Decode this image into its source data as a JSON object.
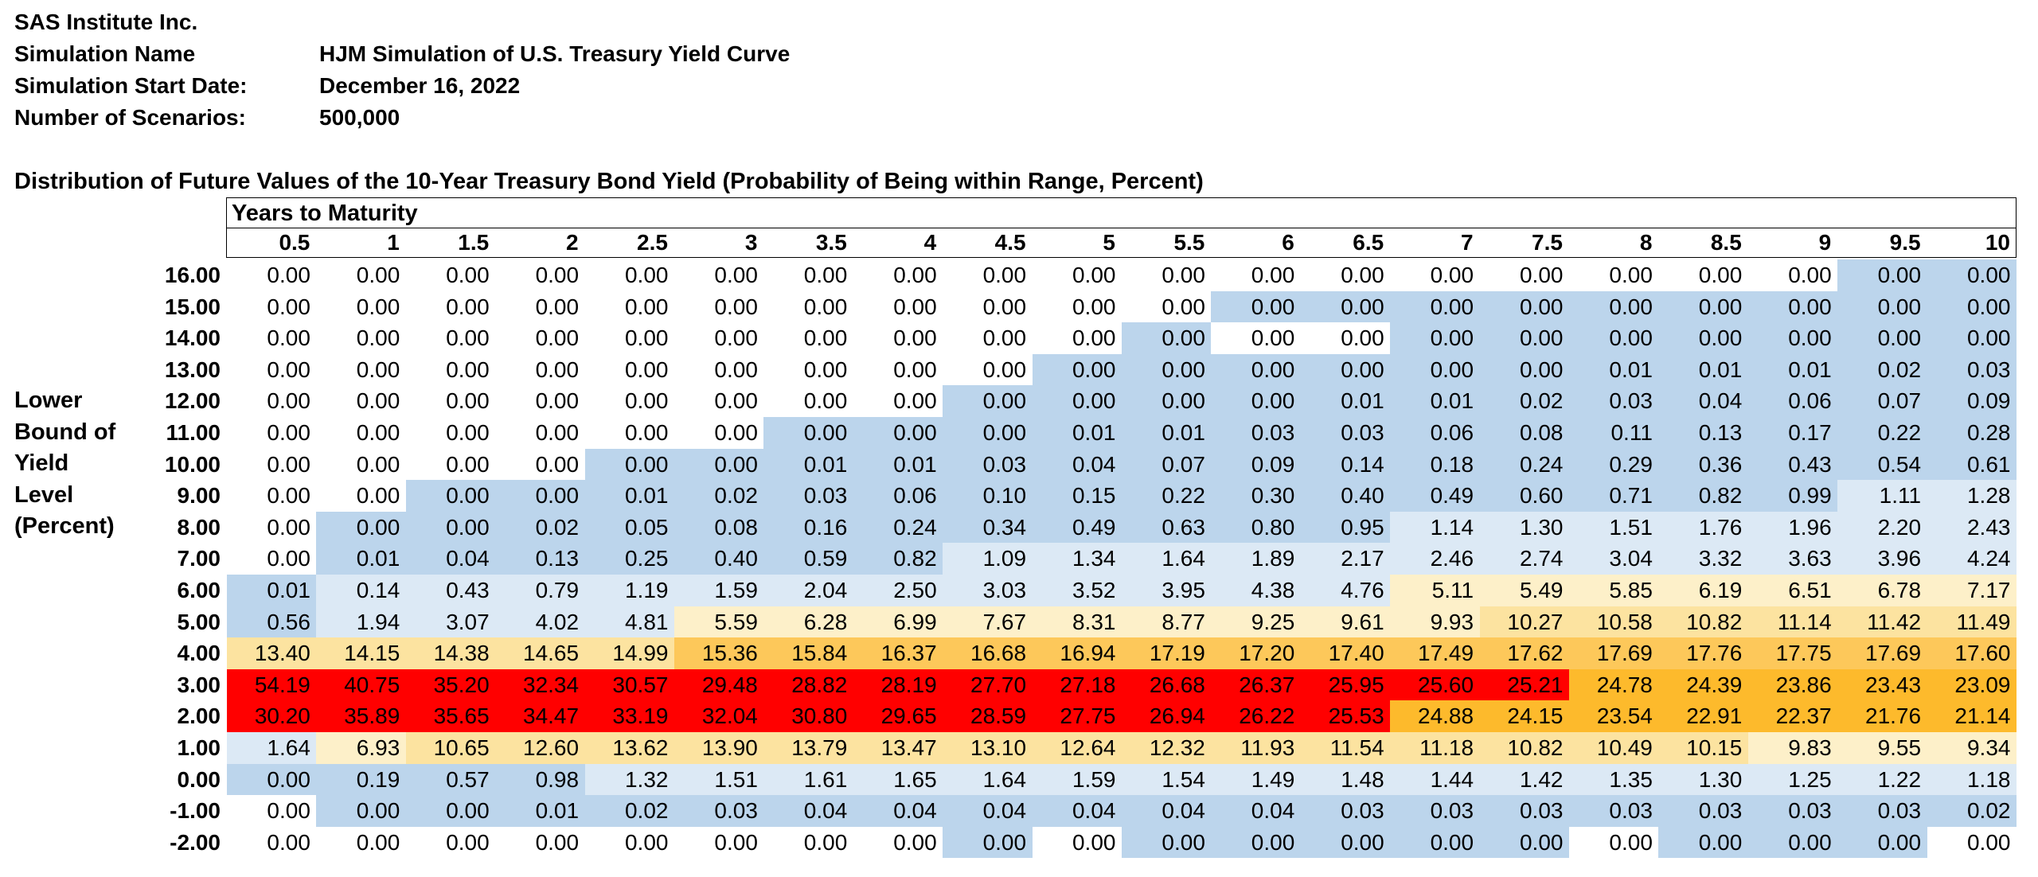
{
  "header": {
    "company": "SAS Institute Inc.",
    "sim_name_label": "Simulation Name",
    "sim_name": "HJM Simulation of U.S. Treasury Yield Curve",
    "start_date_label": "Simulation Start Date:",
    "start_date": "December 16, 2022",
    "scenarios_label": "Number of Scenarios:",
    "scenarios": "500,000"
  },
  "table_title": "Distribution of Future Values of the 10-Year Treasury Bond Yield (Probability of Being within Range, Percent)",
  "column_group_label": "Years to Maturity",
  "row_axis_label": [
    "Lower",
    "Bound of",
    "Yield",
    "Level",
    "(Percent)"
  ],
  "colors": {
    "white": "#ffffff",
    "light_blue": "#dce9f5",
    "blue": "#bcd5ec",
    "light_yellow": "#fdf0c9",
    "yellow": "#fce3a0",
    "amber": "#fdc85a",
    "orange": "#fdba2c",
    "red": "#ff0000"
  },
  "columns": [
    "0.5",
    "1",
    "1.5",
    "2",
    "2.5",
    "3",
    "3.5",
    "4",
    "4.5",
    "5",
    "5.5",
    "6",
    "6.5",
    "7",
    "7.5",
    "8",
    "8.5",
    "9",
    "9.5",
    "10"
  ],
  "rows": [
    {
      "label": "16.00",
      "values": [
        "0.00",
        "0.00",
        "0.00",
        "0.00",
        "0.00",
        "0.00",
        "0.00",
        "0.00",
        "0.00",
        "0.00",
        "0.00",
        "0.00",
        "0.00",
        "0.00",
        "0.00",
        "0.00",
        "0.00",
        "0.00",
        "0.00",
        "0.00"
      ],
      "colors": [
        "W",
        "W",
        "W",
        "W",
        "W",
        "W",
        "W",
        "W",
        "W",
        "W",
        "W",
        "W",
        "W",
        "W",
        "W",
        "W",
        "W",
        "W",
        "B",
        "B"
      ]
    },
    {
      "label": "15.00",
      "values": [
        "0.00",
        "0.00",
        "0.00",
        "0.00",
        "0.00",
        "0.00",
        "0.00",
        "0.00",
        "0.00",
        "0.00",
        "0.00",
        "0.00",
        "0.00",
        "0.00",
        "0.00",
        "0.00",
        "0.00",
        "0.00",
        "0.00",
        "0.00"
      ],
      "colors": [
        "W",
        "W",
        "W",
        "W",
        "W",
        "W",
        "W",
        "W",
        "W",
        "W",
        "W",
        "B",
        "B",
        "B",
        "B",
        "B",
        "B",
        "B",
        "B",
        "B"
      ]
    },
    {
      "label": "14.00",
      "values": [
        "0.00",
        "0.00",
        "0.00",
        "0.00",
        "0.00",
        "0.00",
        "0.00",
        "0.00",
        "0.00",
        "0.00",
        "0.00",
        "0.00",
        "0.00",
        "0.00",
        "0.00",
        "0.00",
        "0.00",
        "0.00",
        "0.00",
        "0.00"
      ],
      "colors": [
        "W",
        "W",
        "W",
        "W",
        "W",
        "W",
        "W",
        "W",
        "W",
        "W",
        "B",
        "W",
        "W",
        "B",
        "B",
        "B",
        "B",
        "B",
        "B",
        "B"
      ]
    },
    {
      "label": "13.00",
      "values": [
        "0.00",
        "0.00",
        "0.00",
        "0.00",
        "0.00",
        "0.00",
        "0.00",
        "0.00",
        "0.00",
        "0.00",
        "0.00",
        "0.00",
        "0.00",
        "0.00",
        "0.00",
        "0.01",
        "0.01",
        "0.01",
        "0.02",
        "0.03"
      ],
      "colors": [
        "W",
        "W",
        "W",
        "W",
        "W",
        "W",
        "W",
        "W",
        "W",
        "B",
        "B",
        "B",
        "B",
        "B",
        "B",
        "B",
        "B",
        "B",
        "B",
        "B"
      ]
    },
    {
      "label": "12.00",
      "values": [
        "0.00",
        "0.00",
        "0.00",
        "0.00",
        "0.00",
        "0.00",
        "0.00",
        "0.00",
        "0.00",
        "0.00",
        "0.00",
        "0.00",
        "0.01",
        "0.01",
        "0.02",
        "0.03",
        "0.04",
        "0.06",
        "0.07",
        "0.09"
      ],
      "colors": [
        "W",
        "W",
        "W",
        "W",
        "W",
        "W",
        "W",
        "W",
        "B",
        "B",
        "B",
        "B",
        "B",
        "B",
        "B",
        "B",
        "B",
        "B",
        "B",
        "B"
      ]
    },
    {
      "label": "11.00",
      "values": [
        "0.00",
        "0.00",
        "0.00",
        "0.00",
        "0.00",
        "0.00",
        "0.00",
        "0.00",
        "0.00",
        "0.01",
        "0.01",
        "0.03",
        "0.03",
        "0.06",
        "0.08",
        "0.11",
        "0.13",
        "0.17",
        "0.22",
        "0.28"
      ],
      "colors": [
        "W",
        "W",
        "W",
        "W",
        "W",
        "W",
        "B",
        "B",
        "B",
        "B",
        "B",
        "B",
        "B",
        "B",
        "B",
        "B",
        "B",
        "B",
        "B",
        "B"
      ]
    },
    {
      "label": "10.00",
      "values": [
        "0.00",
        "0.00",
        "0.00",
        "0.00",
        "0.00",
        "0.00",
        "0.01",
        "0.01",
        "0.03",
        "0.04",
        "0.07",
        "0.09",
        "0.14",
        "0.18",
        "0.24",
        "0.29",
        "0.36",
        "0.43",
        "0.54",
        "0.61"
      ],
      "colors": [
        "W",
        "W",
        "W",
        "W",
        "B",
        "B",
        "B",
        "B",
        "B",
        "B",
        "B",
        "B",
        "B",
        "B",
        "B",
        "B",
        "B",
        "B",
        "B",
        "B"
      ]
    },
    {
      "label": "9.00",
      "values": [
        "0.00",
        "0.00",
        "0.00",
        "0.00",
        "0.01",
        "0.02",
        "0.03",
        "0.06",
        "0.10",
        "0.15",
        "0.22",
        "0.30",
        "0.40",
        "0.49",
        "0.60",
        "0.71",
        "0.82",
        "0.99",
        "1.11",
        "1.28"
      ],
      "colors": [
        "W",
        "W",
        "B",
        "B",
        "B",
        "B",
        "B",
        "B",
        "B",
        "B",
        "B",
        "B",
        "B",
        "B",
        "B",
        "B",
        "B",
        "B",
        "L",
        "L"
      ]
    },
    {
      "label": "8.00",
      "values": [
        "0.00",
        "0.00",
        "0.00",
        "0.02",
        "0.05",
        "0.08",
        "0.16",
        "0.24",
        "0.34",
        "0.49",
        "0.63",
        "0.80",
        "0.95",
        "1.14",
        "1.30",
        "1.51",
        "1.76",
        "1.96",
        "2.20",
        "2.43"
      ],
      "colors": [
        "W",
        "B",
        "B",
        "B",
        "B",
        "B",
        "B",
        "B",
        "B",
        "B",
        "B",
        "B",
        "B",
        "L",
        "L",
        "L",
        "L",
        "L",
        "L",
        "L"
      ]
    },
    {
      "label": "7.00",
      "values": [
        "0.00",
        "0.01",
        "0.04",
        "0.13",
        "0.25",
        "0.40",
        "0.59",
        "0.82",
        "1.09",
        "1.34",
        "1.64",
        "1.89",
        "2.17",
        "2.46",
        "2.74",
        "3.04",
        "3.32",
        "3.63",
        "3.96",
        "4.24"
      ],
      "colors": [
        "W",
        "B",
        "B",
        "B",
        "B",
        "B",
        "B",
        "B",
        "L",
        "L",
        "L",
        "L",
        "L",
        "L",
        "L",
        "L",
        "L",
        "L",
        "L",
        "L"
      ]
    },
    {
      "label": "6.00",
      "values": [
        "0.01",
        "0.14",
        "0.43",
        "0.79",
        "1.19",
        "1.59",
        "2.04",
        "2.50",
        "3.03",
        "3.52",
        "3.95",
        "4.38",
        "4.76",
        "5.11",
        "5.49",
        "5.85",
        "6.19",
        "6.51",
        "6.78",
        "7.17"
      ],
      "colors": [
        "B",
        "L",
        "L",
        "L",
        "L",
        "L",
        "L",
        "L",
        "L",
        "L",
        "L",
        "L",
        "L",
        "Y",
        "Y",
        "Y",
        "Y",
        "Y",
        "Y",
        "Y"
      ]
    },
    {
      "label": "5.00",
      "values": [
        "0.56",
        "1.94",
        "3.07",
        "4.02",
        "4.81",
        "5.59",
        "6.28",
        "6.99",
        "7.67",
        "8.31",
        "8.77",
        "9.25",
        "9.61",
        "9.93",
        "10.27",
        "10.58",
        "10.82",
        "11.14",
        "11.42",
        "11.49"
      ],
      "colors": [
        "B",
        "L",
        "L",
        "L",
        "L",
        "Y",
        "Y",
        "Y",
        "Y",
        "Y",
        "Y",
        "Y",
        "Y",
        "Y",
        "G",
        "G",
        "G",
        "G",
        "G",
        "G"
      ]
    },
    {
      "label": "4.00",
      "values": [
        "13.40",
        "14.15",
        "14.38",
        "14.65",
        "14.99",
        "15.36",
        "15.84",
        "16.37",
        "16.68",
        "16.94",
        "17.19",
        "17.20",
        "17.40",
        "17.49",
        "17.62",
        "17.69",
        "17.76",
        "17.75",
        "17.69",
        "17.60"
      ],
      "colors": [
        "G",
        "G",
        "G",
        "G",
        "G",
        "A",
        "A",
        "A",
        "A",
        "A",
        "A",
        "A",
        "A",
        "A",
        "A",
        "A",
        "A",
        "A",
        "A",
        "A"
      ]
    },
    {
      "label": "3.00",
      "values": [
        "54.19",
        "40.75",
        "35.20",
        "32.34",
        "30.57",
        "29.48",
        "28.82",
        "28.19",
        "27.70",
        "27.18",
        "26.68",
        "26.37",
        "25.95",
        "25.60",
        "25.21",
        "24.78",
        "24.39",
        "23.86",
        "23.43",
        "23.09"
      ],
      "colors": [
        "R",
        "R",
        "R",
        "R",
        "R",
        "R",
        "R",
        "R",
        "R",
        "R",
        "R",
        "R",
        "R",
        "R",
        "R",
        "O",
        "O",
        "O",
        "O",
        "O"
      ]
    },
    {
      "label": "2.00",
      "values": [
        "30.20",
        "35.89",
        "35.65",
        "34.47",
        "33.19",
        "32.04",
        "30.80",
        "29.65",
        "28.59",
        "27.75",
        "26.94",
        "26.22",
        "25.53",
        "24.88",
        "24.15",
        "23.54",
        "22.91",
        "22.37",
        "21.76",
        "21.14"
      ],
      "colors": [
        "R",
        "R",
        "R",
        "R",
        "R",
        "R",
        "R",
        "R",
        "R",
        "R",
        "R",
        "R",
        "R",
        "O",
        "O",
        "O",
        "O",
        "O",
        "O",
        "O"
      ]
    },
    {
      "label": "1.00",
      "values": [
        "1.64",
        "6.93",
        "10.65",
        "12.60",
        "13.62",
        "13.90",
        "13.79",
        "13.47",
        "13.10",
        "12.64",
        "12.32",
        "11.93",
        "11.54",
        "11.18",
        "10.82",
        "10.49",
        "10.15",
        "9.83",
        "9.55",
        "9.34"
      ],
      "colors": [
        "L",
        "Y",
        "G",
        "G",
        "G",
        "G",
        "G",
        "G",
        "G",
        "G",
        "G",
        "G",
        "G",
        "G",
        "G",
        "G",
        "G",
        "Y",
        "Y",
        "Y"
      ]
    },
    {
      "label": "0.00",
      "values": [
        "0.00",
        "0.19",
        "0.57",
        "0.98",
        "1.32",
        "1.51",
        "1.61",
        "1.65",
        "1.64",
        "1.59",
        "1.54",
        "1.49",
        "1.48",
        "1.44",
        "1.42",
        "1.35",
        "1.30",
        "1.25",
        "1.22",
        "1.18"
      ],
      "colors": [
        "B",
        "B",
        "B",
        "B",
        "L",
        "L",
        "L",
        "L",
        "L",
        "L",
        "L",
        "L",
        "L",
        "L",
        "L",
        "L",
        "L",
        "L",
        "L",
        "L"
      ]
    },
    {
      "label": "-1.00",
      "values": [
        "0.00",
        "0.00",
        "0.00",
        "0.01",
        "0.02",
        "0.03",
        "0.04",
        "0.04",
        "0.04",
        "0.04",
        "0.04",
        "0.04",
        "0.03",
        "0.03",
        "0.03",
        "0.03",
        "0.03",
        "0.03",
        "0.03",
        "0.02"
      ],
      "colors": [
        "W",
        "B",
        "B",
        "B",
        "B",
        "B",
        "B",
        "B",
        "B",
        "B",
        "B",
        "B",
        "B",
        "B",
        "B",
        "B",
        "B",
        "B",
        "B",
        "B"
      ]
    },
    {
      "label": "-2.00",
      "values": [
        "0.00",
        "0.00",
        "0.00",
        "0.00",
        "0.00",
        "0.00",
        "0.00",
        "0.00",
        "0.00",
        "0.00",
        "0.00",
        "0.00",
        "0.00",
        "0.00",
        "0.00",
        "0.00",
        "0.00",
        "0.00",
        "0.00",
        "0.00"
      ],
      "colors": [
        "W",
        "W",
        "W",
        "W",
        "W",
        "W",
        "W",
        "W",
        "B",
        "W",
        "B",
        "B",
        "B",
        "B",
        "B",
        "W",
        "B",
        "B",
        "B",
        "W"
      ]
    }
  ]
}
